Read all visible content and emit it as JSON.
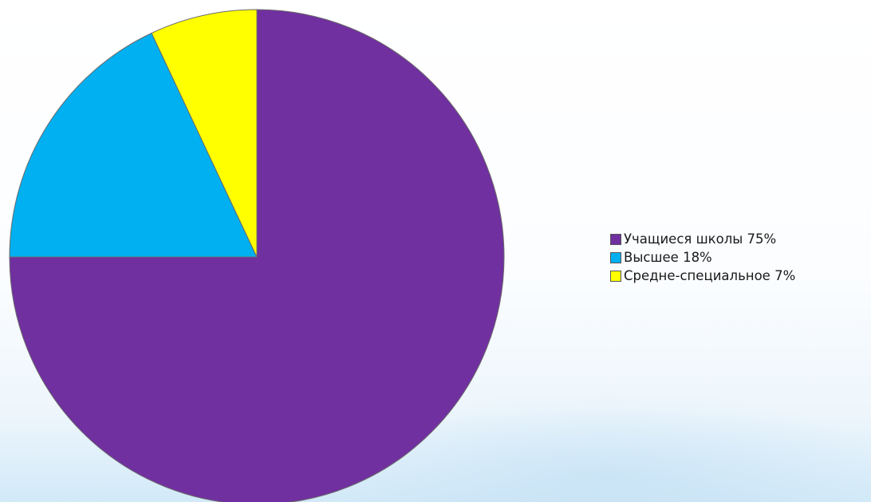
{
  "chart_data": {
    "type": "pie",
    "title": "",
    "slices": [
      {
        "label": "Учащиеся школы 75%",
        "value": 75,
        "color": "#7030a0"
      },
      {
        "label": "Высшее 18%",
        "value": 18,
        "color": "#00b0f0"
      },
      {
        "label": "Средне-специальное 7%",
        "value": 7,
        "color": "#ffff00"
      }
    ],
    "start_angle": "12 o'clock",
    "direction": "clockwise",
    "legend_position": "right"
  }
}
